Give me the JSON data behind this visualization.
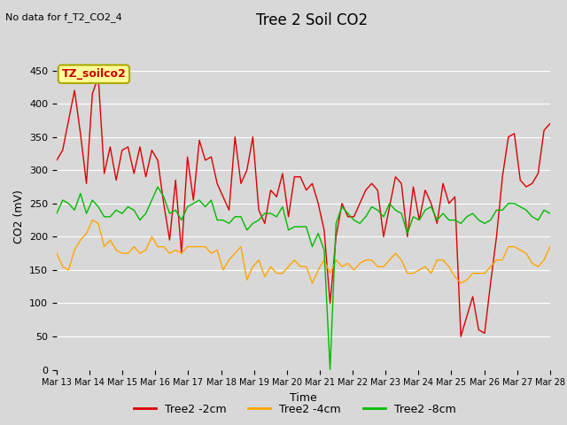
{
  "title": "Tree 2 Soil CO2",
  "no_data_text": "No data for f_T2_CO2_4",
  "ylabel": "CO2 (mV)",
  "xlabel": "Time",
  "ylim": [
    0,
    460
  ],
  "yticks": [
    0,
    50,
    100,
    150,
    200,
    250,
    300,
    350,
    400,
    450
  ],
  "legend_label": "TZ_soilco2",
  "background_color": "#d8d8d8",
  "plot_bg_color": "#d8d8d8",
  "series_colors": [
    "#dd0000",
    "#ffa500",
    "#00bb00"
  ],
  "series_labels": [
    "Tree2 -2cm",
    "Tree2 -4cm",
    "Tree2 -8cm"
  ],
  "xtick_labels": [
    "Mar 13",
    "Mar 14",
    "Mar 15",
    "Mar 16",
    "Mar 17",
    "Mar 18",
    "Mar 19",
    "Mar 20",
    "Mar 21",
    "Mar 22",
    "Mar 23",
    "Mar 24",
    "Mar 25",
    "Mar 26",
    "Mar 27",
    "Mar 28"
  ],
  "red_data": [
    315,
    330,
    375,
    420,
    355,
    280,
    415,
    440,
    295,
    335,
    285,
    330,
    335,
    295,
    335,
    290,
    330,
    315,
    250,
    195,
    285,
    175,
    320,
    255,
    345,
    315,
    320,
    280,
    260,
    240,
    350,
    280,
    300,
    350,
    240,
    220,
    270,
    260,
    295,
    230,
    290,
    290,
    270,
    280,
    250,
    210,
    100,
    200,
    250,
    230,
    230,
    250,
    270,
    280,
    270,
    200,
    245,
    290,
    280,
    200,
    275,
    225,
    270,
    250,
    220,
    280,
    250,
    260,
    50,
    80,
    110,
    60,
    55,
    130,
    200,
    290,
    350,
    355,
    285,
    275,
    280,
    295,
    360,
    370
  ],
  "orange_data": [
    175,
    155,
    150,
    180,
    195,
    205,
    225,
    220,
    185,
    195,
    180,
    175,
    175,
    185,
    175,
    180,
    200,
    185,
    185,
    175,
    180,
    175,
    185,
    185,
    185,
    185,
    175,
    180,
    150,
    165,
    175,
    185,
    135,
    155,
    165,
    140,
    155,
    145,
    145,
    155,
    165,
    155,
    155,
    130,
    150,
    165,
    145,
    165,
    155,
    160,
    150,
    160,
    165,
    165,
    155,
    155,
    165,
    175,
    165,
    145,
    145,
    150,
    155,
    145,
    165,
    165,
    155,
    140,
    130,
    135,
    145,
    145,
    145,
    155,
    165,
    165,
    185,
    185,
    180,
    175,
    160,
    155,
    165,
    185
  ],
  "green_data": [
    235,
    255,
    250,
    240,
    265,
    235,
    255,
    245,
    230,
    230,
    240,
    235,
    245,
    240,
    225,
    235,
    255,
    275,
    260,
    235,
    240,
    225,
    245,
    250,
    255,
    245,
    255,
    225,
    225,
    220,
    230,
    230,
    210,
    220,
    225,
    235,
    235,
    230,
    245,
    210,
    215,
    215,
    215,
    185,
    205,
    180,
    0,
    220,
    245,
    235,
    225,
    220,
    230,
    245,
    240,
    230,
    250,
    240,
    235,
    205,
    230,
    225,
    240,
    245,
    225,
    235,
    225,
    225,
    220,
    230,
    235,
    225,
    220,
    225,
    240,
    240,
    250,
    250,
    245,
    240,
    230,
    225,
    240,
    235
  ]
}
